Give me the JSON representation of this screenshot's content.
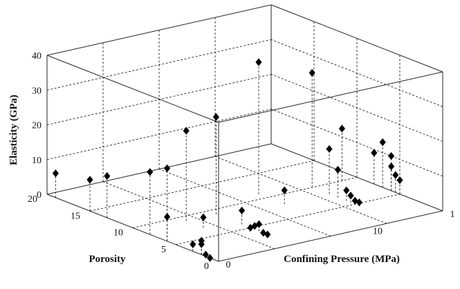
{
  "chart_data": {
    "type": "scatter3d",
    "xlabel": "Confining Pressure (MPa)",
    "ylabel": "Porosity",
    "zlabel": "Elasticity (GPa)",
    "x_ticks": [
      "0",
      "10",
      "1"
    ],
    "y_ticks": [
      "0",
      "5",
      "10",
      "15",
      "20"
    ],
    "z_ticks": [
      "0",
      "10",
      "20",
      "30",
      "40"
    ],
    "grid": true,
    "stems": true,
    "marker": "diamond",
    "points": [
      {
        "x": 0,
        "y": 19,
        "z": 7
      },
      {
        "x": 0,
        "y": 15,
        "z": 9
      },
      {
        "x": 0,
        "y": 13,
        "z": 12
      },
      {
        "x": 0,
        "y": 8,
        "z": 18
      },
      {
        "x": 0,
        "y": 6,
        "z": 21
      },
      {
        "x": 0,
        "y": 6,
        "z": 7
      },
      {
        "x": 0,
        "y": 3,
        "z": 2
      },
      {
        "x": 0,
        "y": 2,
        "z": 3
      },
      {
        "x": 0,
        "y": 2,
        "z": 4
      },
      {
        "x": 0,
        "y": 1.5,
        "z": 0.5
      },
      {
        "x": 0,
        "y": 1,
        "z": 0
      },
      {
        "x": 3,
        "y": 9,
        "z": 26
      },
      {
        "x": 3,
        "y": 7,
        "z": 3
      },
      {
        "x": 5,
        "y": 9,
        "z": 28
      },
      {
        "x": 5,
        "y": 6,
        "z": 4
      },
      {
        "x": 5,
        "y": 5,
        "z": 0
      },
      {
        "x": 5,
        "y": 4.5,
        "z": 1
      },
      {
        "x": 5,
        "y": 4,
        "z": 2
      },
      {
        "x": 5,
        "y": 3.5,
        "z": 0
      },
      {
        "x": 5,
        "y": 3,
        "z": 0
      },
      {
        "x": 9,
        "y": 11,
        "z": 38
      },
      {
        "x": 9,
        "y": 8,
        "z": 4
      },
      {
        "x": 12,
        "y": 10,
        "z": 33
      },
      {
        "x": 12,
        "y": 8,
        "z": 13
      },
      {
        "x": 12,
        "y": 7,
        "z": 8
      },
      {
        "x": 12,
        "y": 6,
        "z": 3
      },
      {
        "x": 12,
        "y": 5.5,
        "z": 2
      },
      {
        "x": 12,
        "y": 5,
        "z": 1
      },
      {
        "x": 12,
        "y": 4.5,
        "z": 1
      },
      {
        "x": 14,
        "y": 10,
        "z": 15
      },
      {
        "x": 15,
        "y": 8,
        "z": 9
      },
      {
        "x": 15,
        "y": 7,
        "z": 13
      },
      {
        "x": 15,
        "y": 6,
        "z": 10
      },
      {
        "x": 15,
        "y": 6,
        "z": 7
      },
      {
        "x": 15,
        "y": 5.5,
        "z": 5
      },
      {
        "x": 15,
        "y": 5,
        "z": 4
      }
    ]
  }
}
